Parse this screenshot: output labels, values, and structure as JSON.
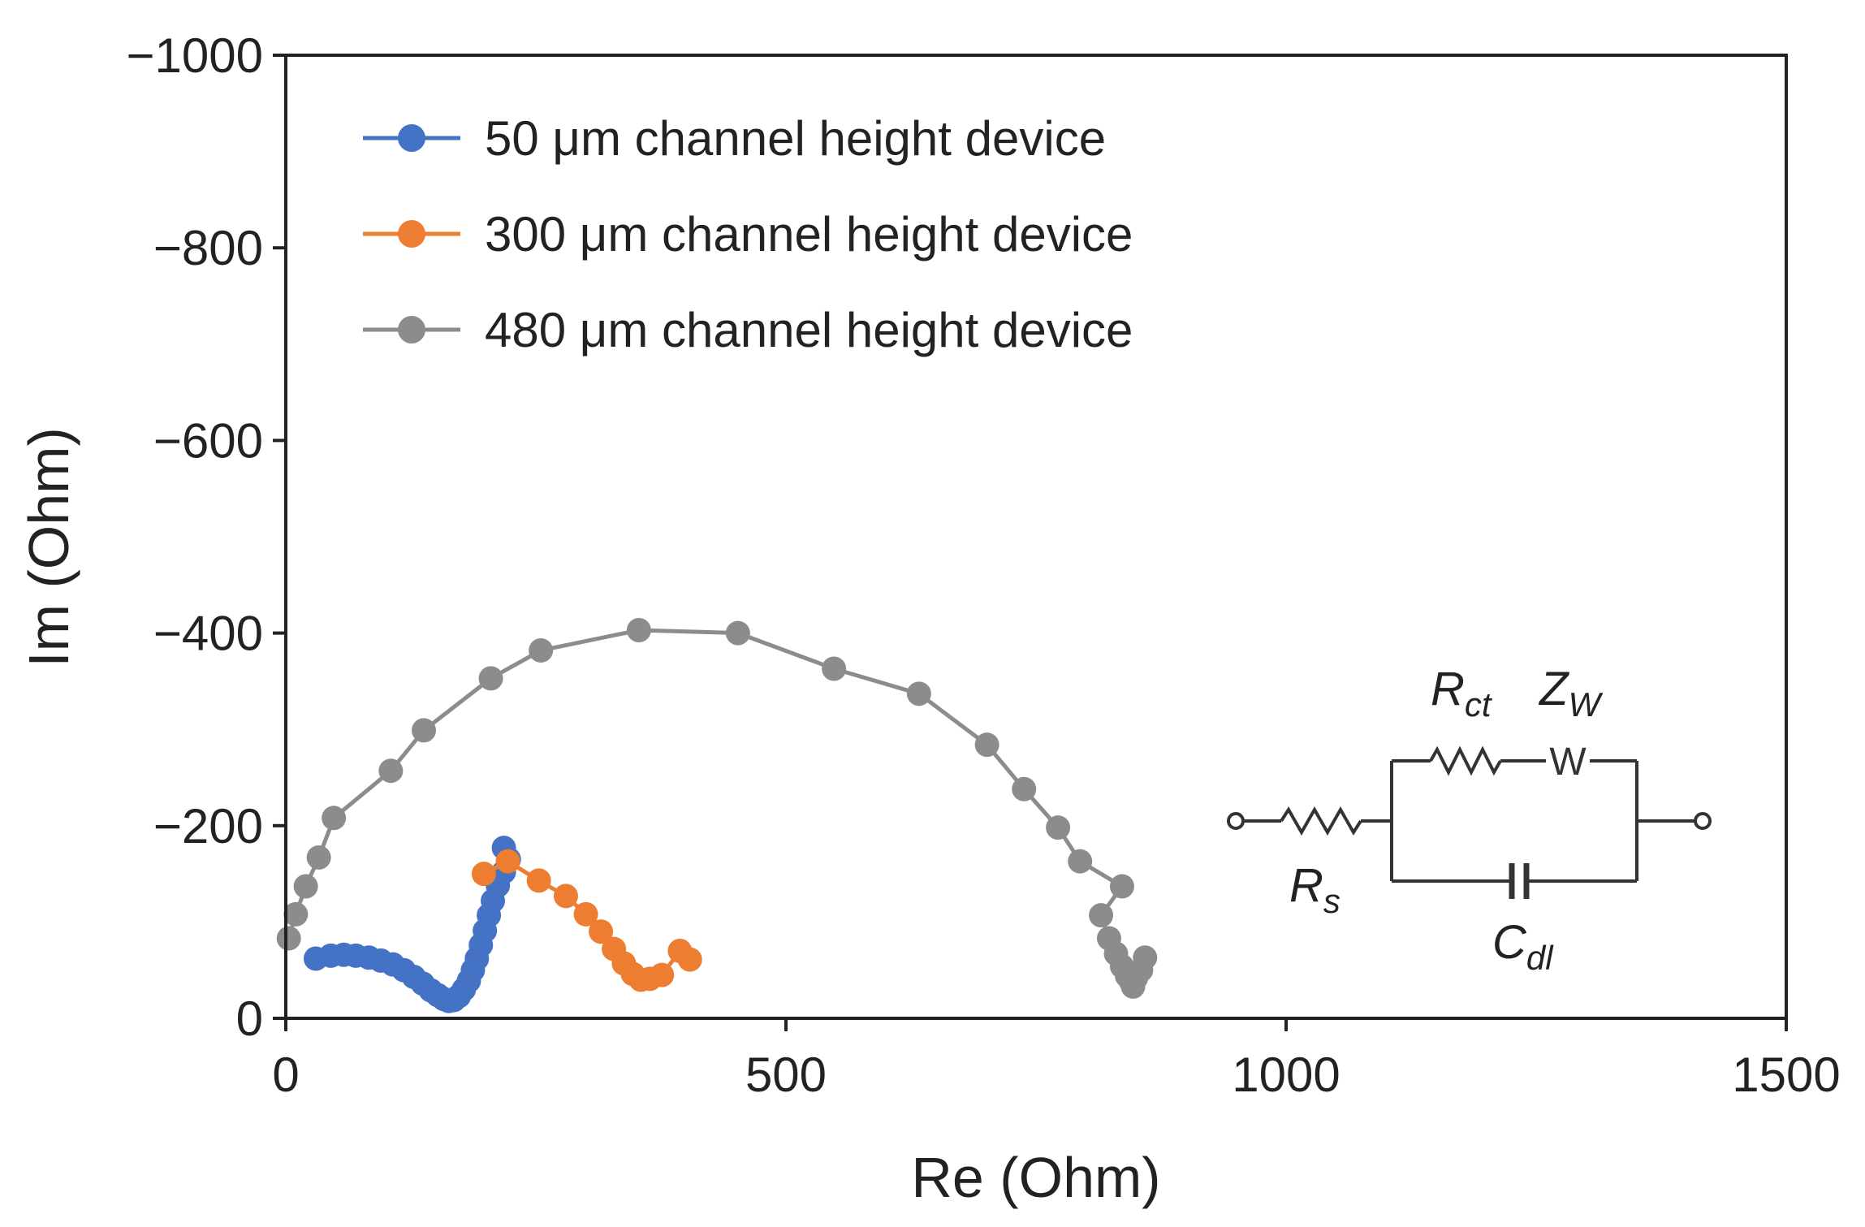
{
  "chart_data": {
    "type": "scatter",
    "xlabel": "Re (Ohm)",
    "ylabel": "Im (Ohm)",
    "xlim": [
      0,
      1500
    ],
    "ylim": [
      0,
      -1000
    ],
    "y_axis_inverted": true,
    "grid": false,
    "legend_position": "top-left",
    "lines_connect_points": true,
    "x_ticks": [
      "0",
      "500",
      "1000",
      "1500"
    ],
    "y_ticks": [
      "0",
      "−200",
      "−400",
      "−600",
      "−800",
      "−1000"
    ],
    "x_tick_values": [
      0,
      500,
      1000,
      1500
    ],
    "y_tick_values": [
      0,
      -200,
      -400,
      -600,
      -800,
      -1000
    ],
    "series": [
      {
        "name": "50 μm channel height device",
        "color": "#4472C4",
        "points": [
          [
            30,
            -62
          ],
          [
            45,
            -65
          ],
          [
            58,
            -66
          ],
          [
            70,
            -65
          ],
          [
            83,
            -63
          ],
          [
            95,
            -60
          ],
          [
            107,
            -56
          ],
          [
            118,
            -50
          ],
          [
            128,
            -43
          ],
          [
            137,
            -36
          ],
          [
            145,
            -29
          ],
          [
            152,
            -24
          ],
          [
            158,
            -20
          ],
          [
            163,
            -18
          ],
          [
            168,
            -19
          ],
          [
            173,
            -23
          ],
          [
            178,
            -30
          ],
          [
            183,
            -39
          ],
          [
            187,
            -50
          ],
          [
            191,
            -62
          ],
          [
            195,
            -76
          ],
          [
            199,
            -91
          ],
          [
            203,
            -107
          ],
          [
            207,
            -122
          ],
          [
            212,
            -138
          ],
          [
            218,
            -152
          ],
          [
            223,
            -165
          ],
          [
            218,
            -177
          ]
        ]
      },
      {
        "name": "300 μm channel height device",
        "color": "#ED7D31",
        "points": [
          [
            198,
            -150
          ],
          [
            222,
            -163
          ],
          [
            253,
            -143
          ],
          [
            280,
            -127
          ],
          [
            300,
            -108
          ],
          [
            315,
            -90
          ],
          [
            328,
            -72
          ],
          [
            338,
            -57
          ],
          [
            347,
            -46
          ],
          [
            355,
            -40
          ],
          [
            364,
            -41
          ],
          [
            376,
            -45
          ],
          [
            394,
            -70
          ],
          [
            404,
            -61
          ]
        ]
      },
      {
        "name": "480 μm channel height device",
        "color": "#8C8C8C",
        "points": [
          [
            3,
            -83
          ],
          [
            10,
            -108
          ],
          [
            20,
            -137
          ],
          [
            33,
            -167
          ],
          [
            48,
            -208
          ],
          [
            105,
            -257
          ],
          [
            138,
            -299
          ],
          [
            205,
            -353
          ],
          [
            255,
            -382
          ],
          [
            353,
            -403
          ],
          [
            452,
            -400
          ],
          [
            548,
            -363
          ],
          [
            633,
            -337
          ],
          [
            701,
            -284
          ],
          [
            738,
            -238
          ],
          [
            772,
            -198
          ],
          [
            794,
            -163
          ],
          [
            836,
            -137
          ],
          [
            815,
            -107
          ],
          [
            823,
            -83
          ],
          [
            830,
            -67
          ],
          [
            836,
            -54
          ],
          [
            841,
            -44
          ],
          [
            845,
            -38
          ],
          [
            850,
            -42
          ],
          [
            855,
            -50
          ],
          [
            859,
            -63
          ],
          [
            847,
            -33
          ]
        ]
      }
    ],
    "inset": {
      "type": "equivalent-circuit",
      "labels": {
        "rct_main": "R",
        "rct_sub": "ct",
        "zw_main": "Z",
        "zw_sub": "W",
        "rs_main": "R",
        "rs_sub": "s",
        "cdl_main": "C",
        "cdl_sub": "dl",
        "warburg_symbol": "W"
      }
    }
  }
}
